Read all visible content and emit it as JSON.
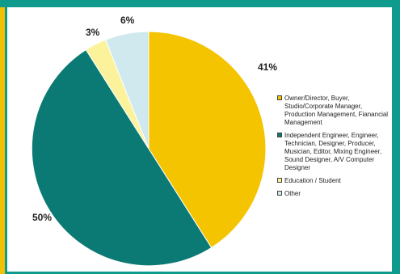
{
  "chart_data": {
    "type": "pie",
    "slices": [
      {
        "label": "Owner/Director, Buyer, Studio/Corporate Manager, Production Management, Fianancial Management",
        "value": 41,
        "display": "41%",
        "color": "#f5c400"
      },
      {
        "label": "Independent Engineer, Engineer, Technician, Designer, Producer, Musician, Editor, Mixing Engineer, Sound Designer, A/V Computer Designer",
        "value": 50,
        "display": "50%",
        "color": "#0b7a74"
      },
      {
        "label": "Education / Student",
        "value": 3,
        "display": "3%",
        "color": "#fbf29b"
      },
      {
        "label": "Other",
        "value": 6,
        "display": "6%",
        "color": "#cfe9ef"
      }
    ],
    "legend_position": "right"
  },
  "colors": {
    "frame": "#0e9a8c",
    "accent_bar": "#f2c200",
    "slice_border": "#ffffff"
  }
}
